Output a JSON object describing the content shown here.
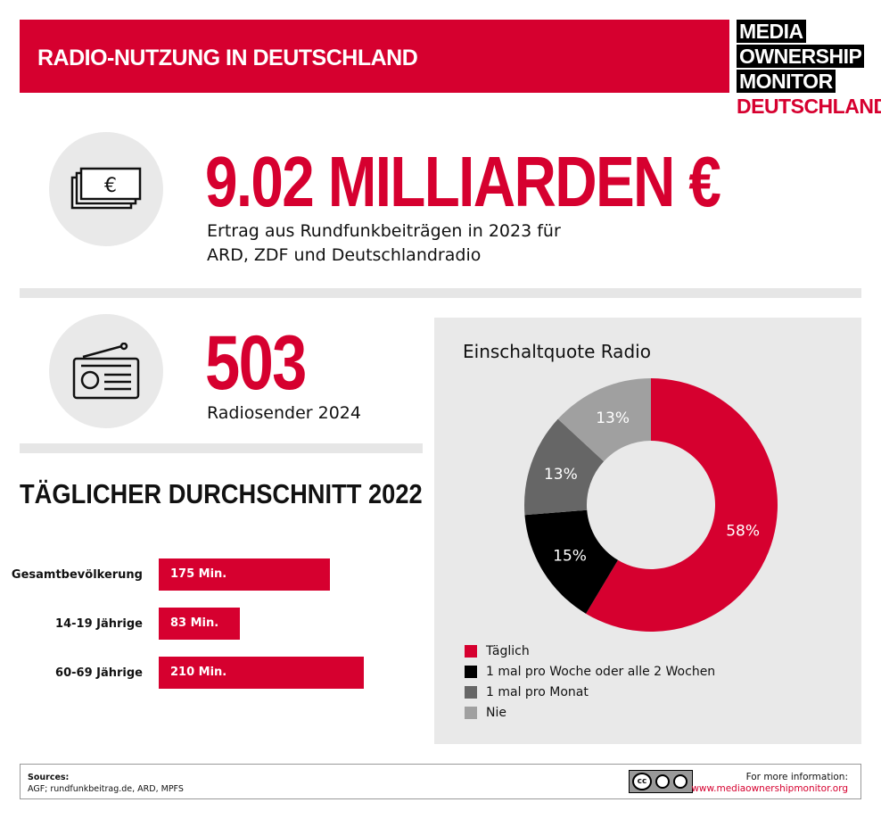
{
  "header": {
    "title": "RADIO-NUTZUNG IN DEUTSCHLAND",
    "logo": [
      "MEDIA",
      "OWNERSHIP",
      "MONITOR",
      "DEUTSCHLAND"
    ]
  },
  "stat1": {
    "value": "9.02 MILLIARDEN €",
    "line1": "Ertrag aus Rundfunkbeiträgen in 2023 für",
    "line2": "ARD, ZDF und Deutschlandradio",
    "icon": "money-icon"
  },
  "stat2": {
    "value": "503",
    "label": "Radiosender 2024",
    "icon": "radio-icon"
  },
  "chart_data": [
    {
      "type": "bar",
      "title": "TÄGLICHER DURCHSCHNITT 2022",
      "categories": [
        "Gesamtbevölkerung",
        "14-19 Jährige",
        "60-69 Jährige"
      ],
      "values": [
        175,
        83,
        210
      ],
      "unit": "Min.",
      "value_labels": [
        "175 Min.",
        "83 Min.",
        "210 Min."
      ],
      "orientation": "horizontal",
      "color": "#d6002f"
    },
    {
      "type": "pie",
      "style": "donut",
      "title": "Einschaltquote Radio",
      "categories": [
        "Täglich",
        "1 mal pro Woche oder alle 2 Wochen",
        "1 mal pro Monat",
        "Nie"
      ],
      "values": [
        58,
        15,
        13,
        13
      ],
      "labels": [
        "58%",
        "15%",
        "13%",
        "13%"
      ],
      "colors": [
        "#d6002f",
        "#000000",
        "#666666",
        "#a0a0a0"
      ],
      "legend": "bottom"
    }
  ],
  "footer": {
    "sources_label": "Sources:",
    "sources": "AGF; rundfunkbeitrag.de, ARD, MPFS",
    "license": "CC BY",
    "more_label": "For more information:",
    "url": "www.mediaownershipmonitor.org"
  }
}
